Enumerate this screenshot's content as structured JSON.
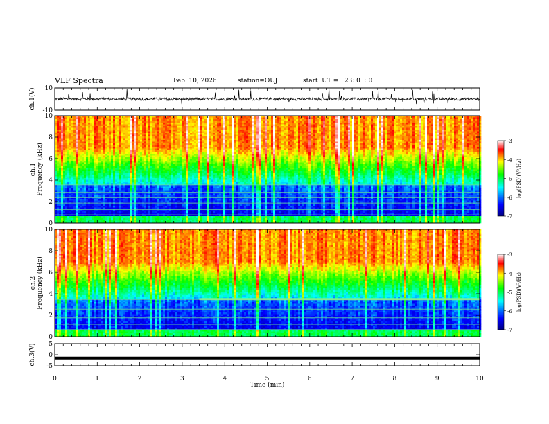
{
  "header": {
    "title": "VLF Spectra",
    "date": "Feb. 10, 2026",
    "station": "station=OUJ",
    "start": "start  UT =   23: 0  : 0"
  },
  "chart_data": [
    {
      "type": "line",
      "title": "VLF Spectra",
      "ylabel": "ch.1(V)",
      "ylim": [
        -10,
        10
      ],
      "yticks": [
        "10",
        "-10"
      ],
      "xlim": [
        0,
        10
      ],
      "description_values": "noisy waveform around 0 with occasional spikes up to about +10 and down to about -3"
    },
    {
      "type": "heatmap",
      "channel": "ch.1",
      "ylabel": "Frequency (kHz)",
      "ylim": [
        0,
        10
      ],
      "yticks": [
        "0",
        "2",
        "4",
        "6",
        "8",
        "10"
      ],
      "xlim": [
        0,
        10
      ],
      "colorbar": {
        "label": "log(PSD)(V²/Hz)",
        "range": [
          -7,
          -3
        ],
        "ticks": [
          "-3",
          "-4",
          "-5",
          "-6",
          "-7"
        ]
      }
    },
    {
      "type": "heatmap",
      "channel": "ch.2",
      "ylabel": "Frequency (kHz)",
      "ylim": [
        0,
        10
      ],
      "yticks": [
        "0",
        "2",
        "4",
        "6",
        "8",
        "10"
      ],
      "xlim": [
        0,
        10
      ],
      "colorbar": {
        "label": "log(PSD)(V²/Hz)",
        "range": [
          -7,
          -3
        ],
        "ticks": [
          "-3",
          "-4",
          "-5",
          "-6",
          "-7"
        ]
      }
    },
    {
      "type": "line",
      "ylabel": "ch.3(V)",
      "ylim": [
        -5,
        5
      ],
      "yticks": [
        "5",
        "0",
        "-5"
      ],
      "xlim": [
        0,
        10
      ],
      "constant_value": -1.5
    }
  ],
  "xaxis": {
    "label": "Time  (min)",
    "ticks": [
      "0",
      "1",
      "2",
      "3",
      "4",
      "5",
      "6",
      "7",
      "8",
      "9",
      "10"
    ]
  },
  "colors": {
    "scale": [
      "#000080",
      "#0000ff",
      "#00ffff",
      "#00ff00",
      "#ffff00",
      "#ff0000",
      "#ffffff"
    ]
  }
}
